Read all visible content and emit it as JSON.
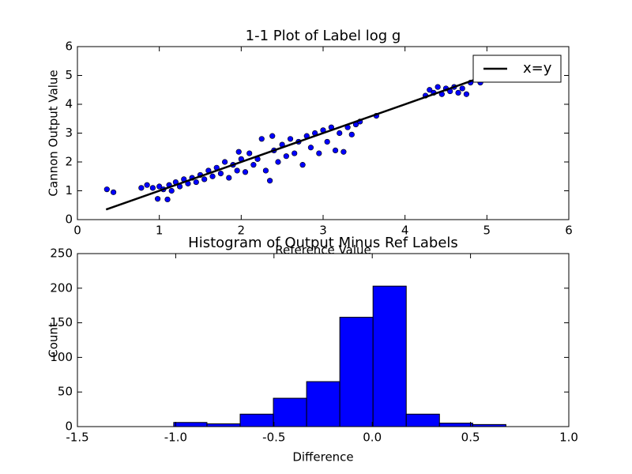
{
  "chart_data": [
    {
      "type": "scatter",
      "title": "1-1 Plot of Label log g",
      "xlabel": "Reference Value",
      "ylabel": "Cannon Output Value",
      "xlim": [
        0,
        6
      ],
      "ylim": [
        0,
        6
      ],
      "xticks": [
        0,
        1,
        2,
        3,
        4,
        5,
        6
      ],
      "yticks": [
        0,
        1,
        2,
        3,
        4,
        5,
        6
      ],
      "legend": "upper right",
      "points": {
        "color": "#0000ff",
        "x": [
          0.36,
          0.44,
          0.78,
          0.85,
          0.92,
          0.98,
          1.0,
          1.05,
          1.1,
          1.12,
          1.15,
          1.2,
          1.25,
          1.3,
          1.35,
          1.4,
          1.45,
          1.5,
          1.55,
          1.6,
          1.65,
          1.7,
          1.75,
          1.8,
          1.85,
          1.9,
          1.95,
          1.97,
          2.0,
          2.05,
          2.1,
          2.15,
          2.2,
          2.25,
          2.3,
          2.35,
          2.38,
          2.4,
          2.45,
          2.5,
          2.55,
          2.6,
          2.65,
          2.7,
          2.75,
          2.8,
          2.85,
          2.9,
          2.95,
          3.0,
          3.05,
          3.1,
          3.15,
          3.2,
          3.25,
          3.3,
          3.35,
          3.4,
          3.45,
          3.65,
          4.25,
          4.3,
          4.35,
          4.4,
          4.45,
          4.5,
          4.55,
          4.6,
          4.65,
          4.7,
          4.75,
          4.8,
          4.92
        ],
        "y": [
          1.05,
          0.95,
          1.1,
          1.2,
          1.1,
          0.72,
          1.15,
          1.05,
          0.7,
          1.2,
          1.0,
          1.3,
          1.15,
          1.4,
          1.25,
          1.45,
          1.3,
          1.55,
          1.4,
          1.7,
          1.5,
          1.8,
          1.6,
          2.0,
          1.45,
          1.9,
          1.7,
          2.35,
          2.1,
          1.65,
          2.3,
          1.9,
          2.1,
          2.8,
          1.7,
          1.35,
          2.9,
          2.4,
          2.0,
          2.6,
          2.2,
          2.8,
          2.3,
          2.7,
          1.9,
          2.9,
          2.5,
          3.0,
          2.3,
          3.1,
          2.7,
          3.2,
          2.4,
          3.0,
          2.35,
          3.2,
          2.95,
          3.3,
          3.4,
          3.6,
          4.3,
          4.5,
          4.4,
          4.6,
          4.35,
          4.55,
          4.45,
          4.6,
          4.4,
          4.55,
          4.35,
          4.75,
          4.75
        ]
      },
      "reference_line": {
        "name": "x=y",
        "color": "#000000",
        "x": [
          0.35,
          4.85
        ],
        "y": [
          0.35,
          4.85
        ]
      }
    },
    {
      "type": "histogram",
      "title": "Histogram of Output Minus Ref Labels",
      "xlabel": "Difference",
      "ylabel": "Count",
      "xlim": [
        -1.5,
        1.0
      ],
      "ylim": [
        0,
        250
      ],
      "xticks": [
        -1.5,
        {
          "value": -1,
          "label": "-1.0"
        },
        -0.5,
        {
          "value": 0,
          "label": "0.0"
        },
        0.5,
        {
          "value": 1,
          "label": "1.0"
        }
      ],
      "yticks": [
        0,
        50,
        100,
        150,
        200,
        250
      ],
      "color": "#0000ff",
      "bins": [
        -1.01,
        -0.841,
        -0.672,
        -0.503,
        -0.334,
        -0.165,
        0.004,
        0.173,
        0.342,
        0.511,
        0.68
      ],
      "values": [
        6,
        4,
        18,
        41,
        65,
        158,
        203,
        18,
        5,
        3
      ]
    }
  ]
}
